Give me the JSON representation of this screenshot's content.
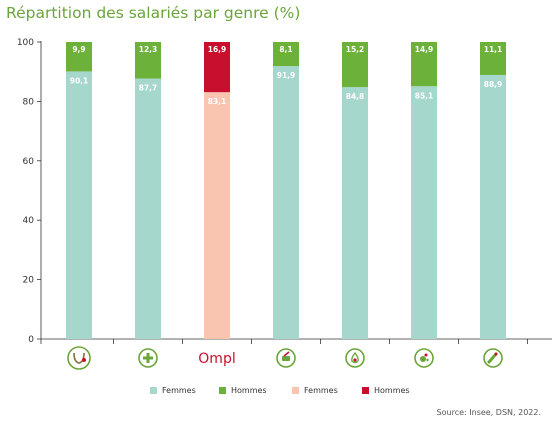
{
  "title": "Répartition des salariés par genre (%)",
  "source": "Source: Insee, DSN, 2022.",
  "chart_data": {
    "type": "bar",
    "stacked": true,
    "title": "Répartition des salariés par genre (%)",
    "ylim": [
      0,
      100
    ],
    "yticks": [
      0,
      20,
      40,
      60,
      80,
      100
    ],
    "grid": false,
    "legend_position": "bottom",
    "categories": [
      {
        "icon": "stethoscope-icon"
      },
      {
        "icon": "medical-cross-icon"
      },
      {
        "icon": "ompl-logo",
        "text": "Ompl"
      },
      {
        "icon": "pharmacy-icon"
      },
      {
        "icon": "dental-drop-icon"
      },
      {
        "icon": "veterinary-icon"
      },
      {
        "icon": "lab-tube-icon"
      }
    ],
    "series": [
      {
        "name": "Femmes",
        "values": [
          90.1,
          87.7,
          83.1,
          91.9,
          84.8,
          85.1,
          88.9
        ],
        "labels": [
          "90,1",
          "87,7",
          "83,1",
          "91,9",
          "84,8",
          "85,1",
          "88,9"
        ]
      },
      {
        "name": "Hommes",
        "values": [
          9.9,
          12.3,
          16.9,
          8.1,
          15.2,
          14.9,
          11.1
        ],
        "labels": [
          "9,9",
          "12,3",
          "16,9",
          "8,1",
          "15,2",
          "14,9",
          "11,1"
        ]
      }
    ],
    "highlight_index": 2,
    "colors": {
      "femmes": "#a6d7cd",
      "hommes": "#6cb23a",
      "femmes_highlight": "#f9c5b0",
      "hommes_highlight": "#c8102e",
      "icon_green": "#6ba53a",
      "title": "#6ba53a"
    },
    "legend": [
      {
        "label": "Femmes",
        "color": "#a6d7cd"
      },
      {
        "label": "Hommes",
        "color": "#6cb23a"
      },
      {
        "label": "Femmes",
        "color": "#f9c5b0"
      },
      {
        "label": "Hommes",
        "color": "#c8102e"
      }
    ]
  }
}
